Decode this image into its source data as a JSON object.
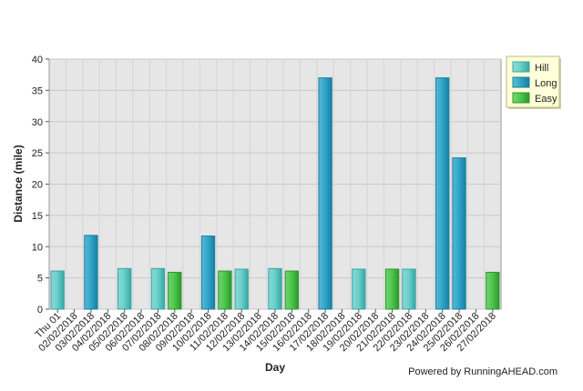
{
  "chart_data": {
    "type": "bar",
    "xlabel": "Day",
    "ylabel": "Distance (mile)",
    "ylim": [
      0,
      40
    ],
    "yticks": [
      0,
      5,
      10,
      15,
      20,
      25,
      30,
      35,
      40
    ],
    "grid": true,
    "legend_position": "top-right",
    "categories": [
      "Thu 01",
      "02/02/2018",
      "03/02/2018",
      "04/02/2018",
      "05/02/2018",
      "06/02/2018",
      "07/02/2018",
      "08/02/2018",
      "09/02/2018",
      "10/02/2018",
      "11/02/2018",
      "12/02/2018",
      "13/02/2018",
      "14/02/2018",
      "15/02/2018",
      "16/02/2018",
      "17/02/2018",
      "18/02/2018",
      "19/02/2018",
      "20/02/2018",
      "21/02/2018",
      "22/02/2018",
      "23/02/2018",
      "24/02/2018",
      "25/02/2018",
      "26/02/2018",
      "27/02/2018"
    ],
    "bars": [
      {
        "category": "Thu 01",
        "series": "Hill",
        "value": 6.1
      },
      {
        "category": "03/02/2018",
        "series": "Long",
        "value": 11.8
      },
      {
        "category": "05/02/2018",
        "series": "Hill",
        "value": 6.5
      },
      {
        "category": "07/02/2018",
        "series": "Hill",
        "value": 6.5
      },
      {
        "category": "08/02/2018",
        "series": "Easy",
        "value": 5.9
      },
      {
        "category": "10/02/2018",
        "series": "Long",
        "value": 11.7
      },
      {
        "category": "11/02/2018",
        "series": "Easy",
        "value": 6.1
      },
      {
        "category": "12/02/2018",
        "series": "Hill",
        "value": 6.4
      },
      {
        "category": "14/02/2018",
        "series": "Hill",
        "value": 6.5
      },
      {
        "category": "15/02/2018",
        "series": "Easy",
        "value": 6.1
      },
      {
        "category": "17/02/2018",
        "series": "Long",
        "value": 37.0
      },
      {
        "category": "19/02/2018",
        "series": "Hill",
        "value": 6.4
      },
      {
        "category": "21/02/2018",
        "series": "Easy",
        "value": 6.4
      },
      {
        "category": "22/02/2018",
        "series": "Hill",
        "value": 6.4
      },
      {
        "category": "24/02/2018",
        "series": "Long",
        "value": 37.0
      },
      {
        "category": "25/02/2018",
        "series": "Long",
        "value": 24.2
      },
      {
        "category": "27/02/2018",
        "series": "Easy",
        "value": 5.9
      }
    ],
    "series": [
      {
        "name": "Hill",
        "color": "#6cd2cc",
        "edge": "#3aa6a3"
      },
      {
        "name": "Long",
        "color": "#2fa8cc",
        "edge": "#1a7fa0"
      },
      {
        "name": "Easy",
        "color": "#4ec94e",
        "edge": "#2f962f"
      }
    ]
  },
  "credit": "Powered by RunningAHEAD.com"
}
